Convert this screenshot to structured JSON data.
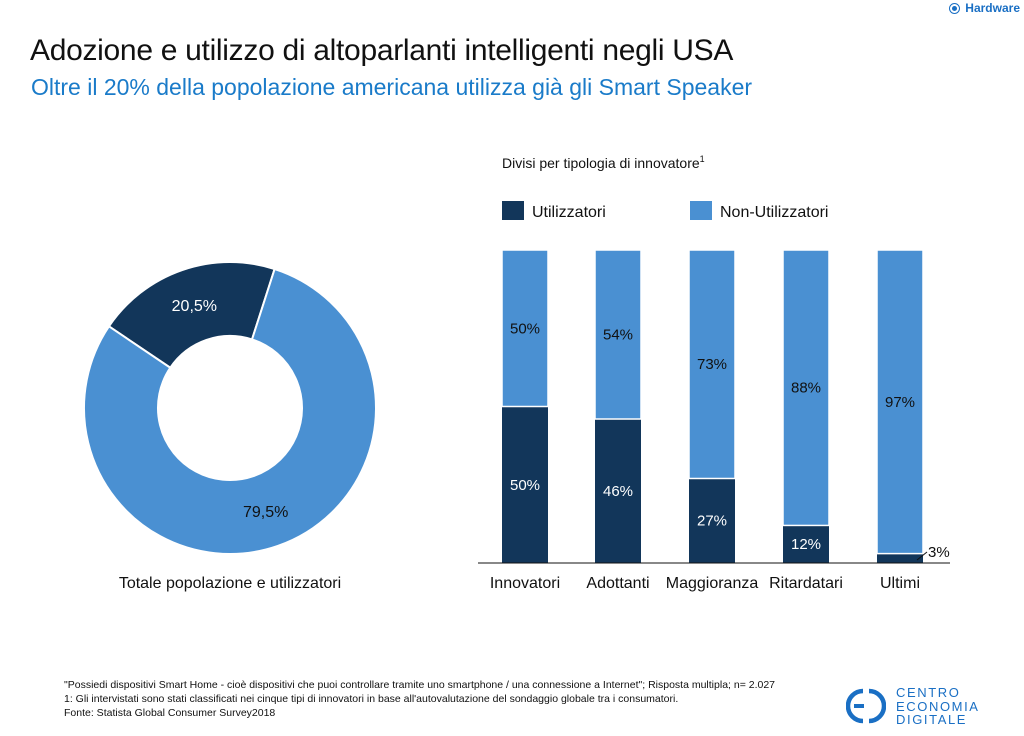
{
  "header": {
    "corner_tag": "Hardware",
    "title": "Adozione e utilizzo di altoparlanti intelligenti negli USA",
    "subtitle": "Oltre il 20% della popolazione americana utilizza già gli Smart Speaker"
  },
  "colors": {
    "dark": "#12365a",
    "light": "#4a90d2",
    "subtitle": "#1a7bc9",
    "logo": "#1a6fc4"
  },
  "chart_data": [
    {
      "type": "pie",
      "title": "",
      "caption": "Totale popolazione e utilizzatori",
      "slices": [
        {
          "value": 20.5,
          "label": "20,5%",
          "color": "#12365a"
        },
        {
          "value": 79.5,
          "label": "79,5%",
          "color": "#4a90d2"
        }
      ]
    },
    {
      "type": "bar",
      "stacked": true,
      "title": "Divisi per tipologia di innovatore",
      "title_sup": "1",
      "categories": [
        "Innovatori",
        "Adottanti",
        "Maggioranza",
        "Ritardatari",
        "Ultimi"
      ],
      "series": [
        {
          "name": "Utilizzatori",
          "color": "#12365a",
          "values": [
            50,
            46,
            27,
            12,
            3
          ],
          "labels": [
            "50%",
            "46%",
            "27%",
            "12%",
            "3%"
          ]
        },
        {
          "name": "Non-Utilizzatori",
          "color": "#4a90d2",
          "values": [
            50,
            54,
            73,
            88,
            97
          ],
          "labels": [
            "50%",
            "54%",
            "73%",
            "88%",
            "97%"
          ]
        }
      ],
      "ylim": [
        0,
        100
      ],
      "legend": "top",
      "grid": false
    }
  ],
  "footnotes": [
    "\"Possiedi dispositivi Smart Home - cioè dispositivi che puoi controllare tramite uno smartphone / una connessione a Internet\"; Risposta multipla; n= 2.027",
    "1: Gli intervistati sono stati classificati nei cinque tipi di innovatori in base all'autovalutazione del sondaggio globale tra i consumatori.",
    "Fonte: Statista Global Consumer Survey2018"
  ],
  "logo": {
    "lines": [
      "CENTRO",
      "ECONOMIA",
      "DIGITALE"
    ],
    "icon": "ced-logo-icon"
  }
}
